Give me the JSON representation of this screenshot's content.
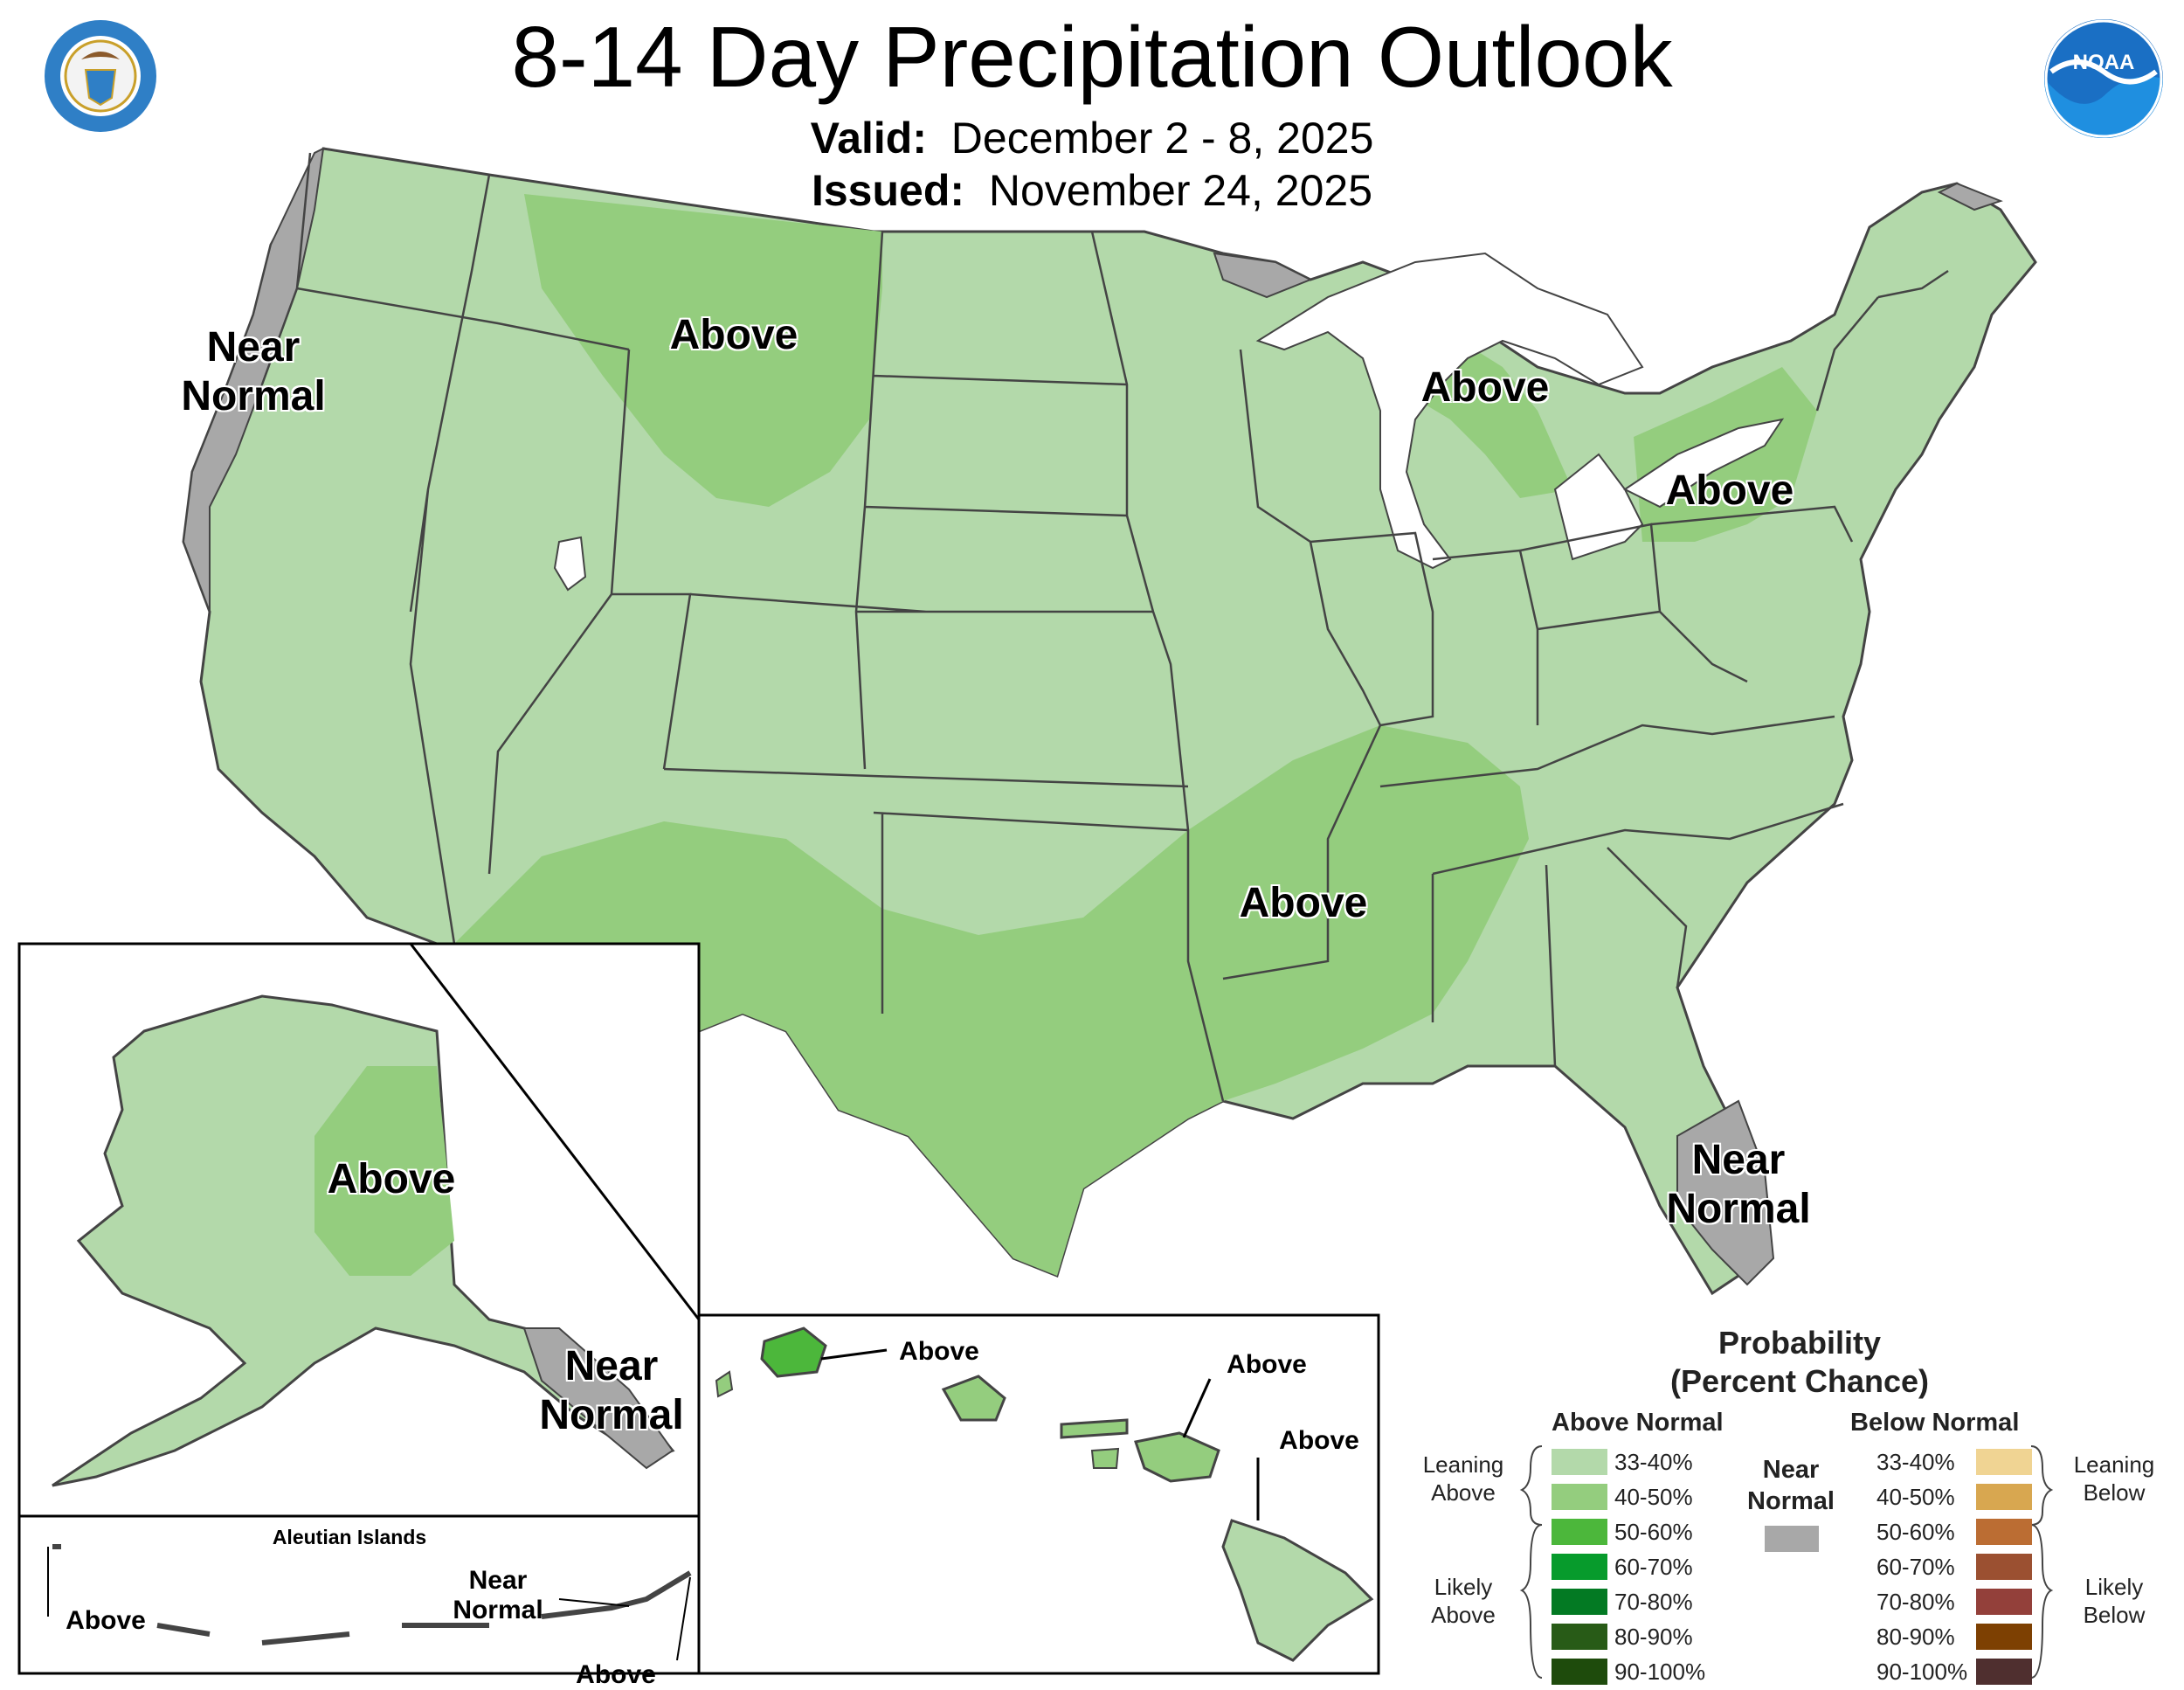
{
  "header": {
    "title": "8-14 Day Precipitation Outlook",
    "valid_label": "Valid:",
    "valid_value": "December 2 - 8, 2025",
    "issued_label": "Issued:",
    "issued_value": "November 24, 2025"
  },
  "logos": {
    "commerce_seal": "department-of-commerce-seal",
    "noaa_logo_text": "NOAA"
  },
  "map_labels": {
    "near_normal_west": [
      "Near",
      "Normal"
    ],
    "above_montana": "Above",
    "above_michigan": "Above",
    "above_new_york": "Above",
    "above_southcentral": "Above",
    "near_normal_florida": [
      "Near",
      "Normal"
    ],
    "alaska_above": "Above",
    "alaska_near_normal": [
      "Near",
      "Normal"
    ],
    "hawaii_above_kauai": "Above",
    "hawaii_above_maui": "Above",
    "hawaii_above_big_island": "Above",
    "aleutian_title": "Aleutian Islands",
    "aleutian_above_west": "Above",
    "aleutian_near_normal": [
      "Near",
      "Normal"
    ],
    "aleutian_above_east": "Above"
  },
  "legend": {
    "title_line1": "Probability",
    "title_line2": "(Percent Chance)",
    "above_header": "Above Normal",
    "below_header": "Below Normal",
    "near_normal": [
      "Near",
      "Normal"
    ],
    "near_normal_color": "#a8a8a8",
    "leaning_above": [
      "Leaning",
      "Above"
    ],
    "likely_above": [
      "Likely",
      "Above"
    ],
    "leaning_below": [
      "Leaning",
      "Below"
    ],
    "likely_below": [
      "Likely",
      "Below"
    ],
    "above_bins": [
      {
        "label": "33-40%",
        "color": "#b3d9aa"
      },
      {
        "label": "40-50%",
        "color": "#94cd7e"
      },
      {
        "label": "50-60%",
        "color": "#4cb73b"
      },
      {
        "label": "60-70%",
        "color": "#079b2c"
      },
      {
        "label": "70-80%",
        "color": "#037a23"
      },
      {
        "label": "80-90%",
        "color": "#285b17"
      },
      {
        "label": "90-100%",
        "color": "#1e4b0c"
      }
    ],
    "below_bins": [
      {
        "label": "33-40%",
        "color": "#f0d493"
      },
      {
        "label": "40-50%",
        "color": "#d8a750"
      },
      {
        "label": "50-60%",
        "color": "#bb6d33"
      },
      {
        "label": "60-70%",
        "color": "#9b5031"
      },
      {
        "label": "70-80%",
        "color": "#93403a"
      },
      {
        "label": "80-90%",
        "color": "#7d4002"
      },
      {
        "label": "90-100%",
        "color": "#4f2f2f"
      }
    ]
  }
}
